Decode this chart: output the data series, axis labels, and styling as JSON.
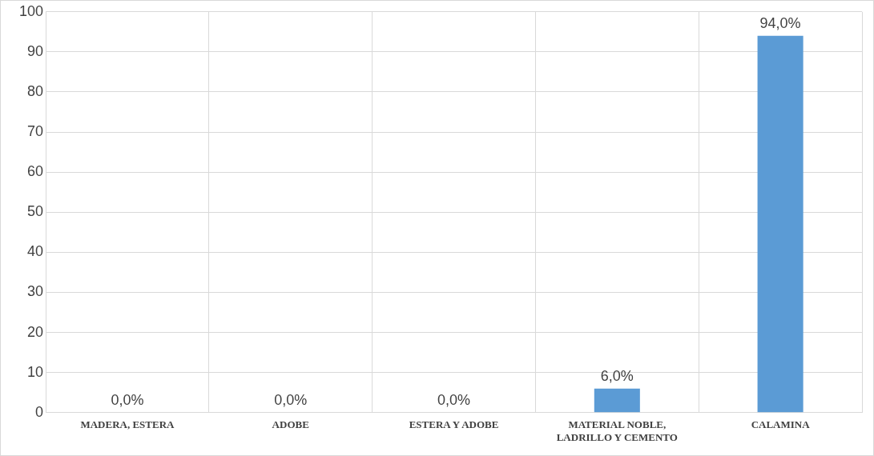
{
  "chart_data": {
    "type": "bar",
    "categories": [
      "MADERA, ESTERA",
      "ADOBE",
      "ESTERA Y ADOBE",
      "MATERIAL NOBLE, LADRILLO Y CEMENTO",
      "CALAMINA"
    ],
    "values": [
      0,
      0,
      0,
      6,
      94
    ],
    "value_labels": [
      "0,0%",
      "0,0%",
      "0,0%",
      "6,0%",
      "94,0%"
    ],
    "color": "#5b9bd5",
    "ylim": [
      0,
      100
    ],
    "yticks": [
      0,
      10,
      20,
      30,
      40,
      50,
      60,
      70,
      80,
      90,
      100
    ],
    "grid": true,
    "legend": false
  }
}
